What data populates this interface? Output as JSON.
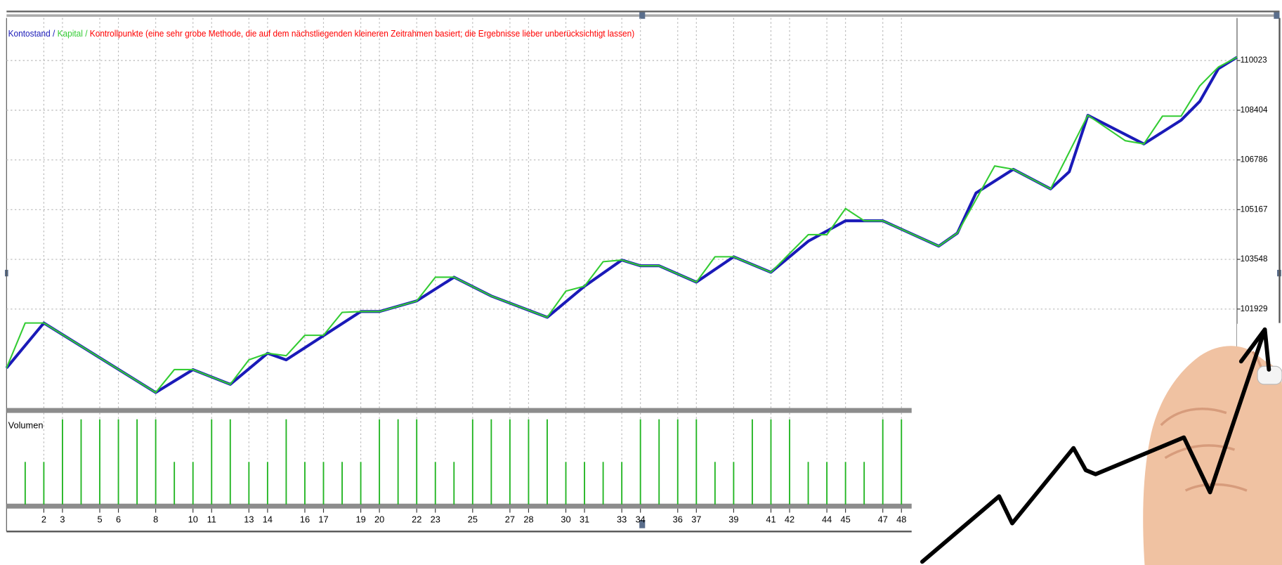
{
  "chart_data": [
    {
      "type": "line",
      "legend_separator": " / ",
      "legend_note": {
        "text": "Kontrollpunkte (eine sehr grobe Methode, die auf dem nächstliegenden kleineren Zeitrahmen basiert; die Ergebnisse lieber unberücksichtigt lassen)",
        "color": "#ff0000"
      },
      "xlim": [
        0,
        66
      ],
      "ylim": [
        98680,
        111408
      ],
      "yticks": [
        101929,
        103548,
        105167,
        106786,
        108404,
        110023
      ],
      "grid": true,
      "series": [
        {
          "name": "Kontostand",
          "color": "#1a1ab8",
          "x": [
            0,
            2,
            8,
            10,
            12,
            14,
            15,
            19,
            20,
            22,
            24,
            26,
            29,
            31,
            33,
            34,
            35,
            37,
            39,
            41,
            43,
            45,
            47,
            50,
            51,
            52,
            54,
            56,
            57,
            58,
            61,
            63,
            64,
            65,
            66
          ],
          "values": [
            100010,
            101475,
            99211,
            99957,
            99478,
            100489,
            100276,
            101848,
            101848,
            102194,
            102966,
            102354,
            101661,
            102673,
            103525,
            103339,
            103339,
            102806,
            103632,
            103126,
            104138,
            104804,
            104804,
            103978,
            104404,
            105709,
            106481,
            105842,
            106401,
            108239,
            107307,
            108079,
            108691,
            109757,
            110130
          ]
        },
        {
          "name": "Kapital",
          "color": "#33cc33",
          "x": [
            0,
            1,
            2,
            8,
            9,
            10,
            12,
            13,
            14,
            15,
            16,
            17,
            18,
            19,
            20,
            22,
            23,
            24,
            26,
            29,
            30,
            31,
            32,
            33,
            34,
            35,
            37,
            38,
            39,
            41,
            42,
            43,
            44,
            45,
            46,
            47,
            50,
            51,
            53,
            54,
            56,
            58,
            60,
            61,
            62,
            63,
            64,
            65,
            66
          ],
          "values": [
            100010,
            101475,
            101475,
            99211,
            99957,
            99957,
            99478,
            100276,
            100489,
            100410,
            101075,
            101075,
            101821,
            101848,
            101848,
            102194,
            102966,
            102966,
            102354,
            101661,
            102513,
            102673,
            103472,
            103525,
            103339,
            103339,
            102806,
            103632,
            103632,
            103126,
            103738,
            104351,
            104351,
            105203,
            104804,
            104804,
            103978,
            104404,
            106588,
            106481,
            105842,
            108239,
            107413,
            107307,
            108212,
            108212,
            109197,
            109810,
            110130
          ]
        }
      ]
    },
    {
      "type": "bar",
      "title": "Volumen",
      "color": "#22b522",
      "x": [
        1,
        2,
        3,
        4,
        5,
        6,
        7,
        8,
        9,
        10,
        11,
        12,
        13,
        14,
        15,
        16,
        17,
        18,
        19,
        20,
        21,
        22,
        23,
        24,
        25,
        26,
        27,
        28,
        29,
        30,
        31,
        32,
        33,
        34,
        35,
        36,
        37,
        38,
        39,
        40,
        41,
        42,
        43,
        44,
        45,
        46,
        47,
        48
      ],
      "values": [
        1,
        1,
        2,
        2,
        2,
        2,
        2,
        2,
        1,
        1,
        2,
        2,
        1,
        1,
        2,
        1,
        1,
        1,
        1,
        2,
        2,
        2,
        1,
        1,
        2,
        2,
        2,
        2,
        2,
        1,
        1,
        1,
        1,
        2,
        2,
        2,
        2,
        1,
        1,
        2,
        2,
        2,
        1,
        1,
        1,
        1,
        2,
        2
      ],
      "xlim": [
        0,
        66
      ],
      "ylim": [
        0,
        2.15
      ],
      "xticks": [
        2,
        3,
        5,
        6,
        8,
        10,
        11,
        13,
        14,
        16,
        17,
        19,
        20,
        22,
        23,
        25,
        27,
        28,
        30,
        31,
        33,
        34,
        36,
        37,
        39,
        41,
        42,
        44,
        45,
        47,
        48
      ],
      "grid": true
    }
  ]
}
